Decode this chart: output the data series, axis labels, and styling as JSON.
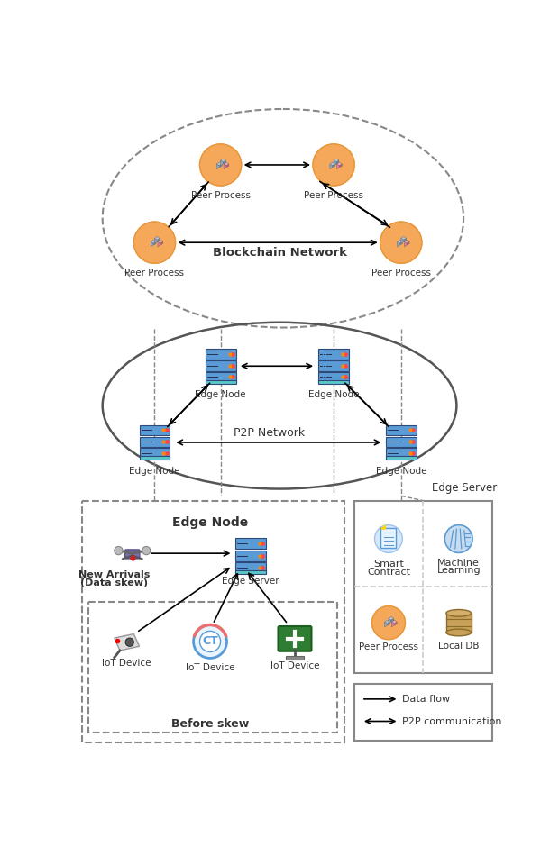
{
  "bg_color": "#ffffff",
  "blockchain_label": "Blockchain Network",
  "p2p_label": "P2P Network",
  "edge_server_label": "Edge Server",
  "edge_node_label": "Edge Node",
  "legend_data_flow": "Data flow",
  "legend_p2p": "P2P communication",
  "dashed_line_color": "#888888",
  "arrow_color": "#000000",
  "text_color": "#333333",
  "peer_fill": "#F5A85A",
  "peer_edge": "#E8963A",
  "server_blue": "#5B9BD5",
  "server_dark": "#2E4A7A",
  "server_teal": "#5BC8C8",
  "grid_line_color": "#cccccc",
  "db_fill": "#C8A05A",
  "db_top": "#D4AE6A",
  "db_edge": "#8B6A2A"
}
